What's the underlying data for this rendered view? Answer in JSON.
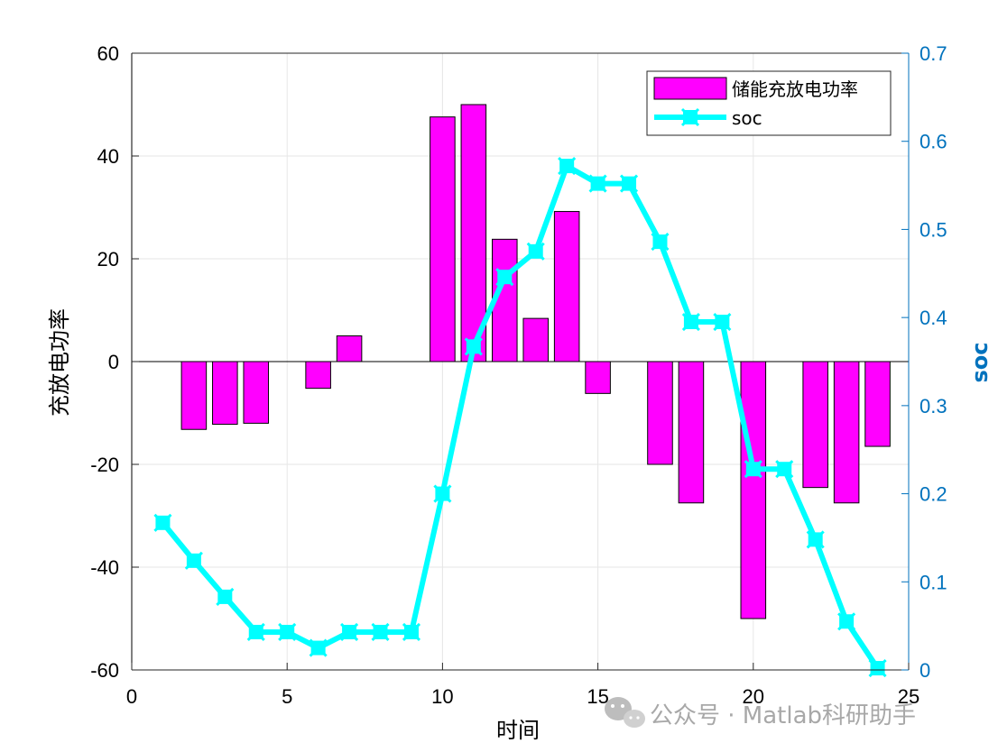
{
  "chart_data": {
    "type": "bar+line",
    "x_label": "时间",
    "y_left_label": "充放电功率",
    "y_right_label": "soc",
    "xlim": [
      0,
      25
    ],
    "ylim_left": [
      -60,
      60
    ],
    "ylim_right": [
      0,
      0.7
    ],
    "x_ticks": [
      0,
      5,
      10,
      15,
      20,
      25
    ],
    "y_left_ticks": [
      -60,
      -40,
      -20,
      0,
      20,
      40,
      60
    ],
    "y_right_ticks": [
      0,
      0.1,
      0.2,
      0.3,
      0.4,
      0.5,
      0.6,
      0.7
    ],
    "y_right_tick_labels": [
      "0",
      "0.1",
      "0.2",
      "0.3",
      "0.4",
      "0.5",
      "0.6",
      "0.7"
    ],
    "grid": true,
    "legend_position": "top-right",
    "series": [
      {
        "name": "储能充放电功率",
        "type": "bar",
        "axis": "left",
        "color": "#ff00ff",
        "x": [
          1,
          2,
          3,
          4,
          5,
          6,
          7,
          8,
          9,
          10,
          11,
          12,
          13,
          14,
          15,
          16,
          17,
          18,
          19,
          20,
          21,
          22,
          23,
          24
        ],
        "values": [
          0,
          -13.2,
          -12.2,
          -12.0,
          0,
          -5.2,
          5.0,
          0,
          0,
          47.6,
          50.0,
          23.8,
          8.4,
          29.2,
          -6.2,
          0,
          -20.0,
          -27.5,
          0,
          -50.0,
          0,
          -24.5,
          -27.5,
          -16.5
        ]
      },
      {
        "name": "soc",
        "type": "line",
        "axis": "right",
        "color": "#00ffff",
        "x": [
          1,
          2,
          3,
          4,
          5,
          6,
          7,
          8,
          9,
          10,
          11,
          12,
          13,
          14,
          15,
          16,
          17,
          18,
          19,
          20,
          21,
          22,
          23,
          24
        ],
        "values": [
          0.167,
          0.124,
          0.083,
          0.043,
          0.043,
          0.025,
          0.043,
          0.043,
          0.043,
          0.2,
          0.367,
          0.446,
          0.475,
          0.572,
          0.552,
          0.552,
          0.486,
          0.395,
          0.395,
          0.228,
          0.228,
          0.148,
          0.055,
          0.002
        ]
      }
    ],
    "colors": {
      "axis_left": "#000000",
      "axis_right": "#0072bd",
      "grid": "#e6e6e6"
    }
  },
  "watermark": "公众号 · Matlab科研助手",
  "watermark_icon": "wechat-icon"
}
